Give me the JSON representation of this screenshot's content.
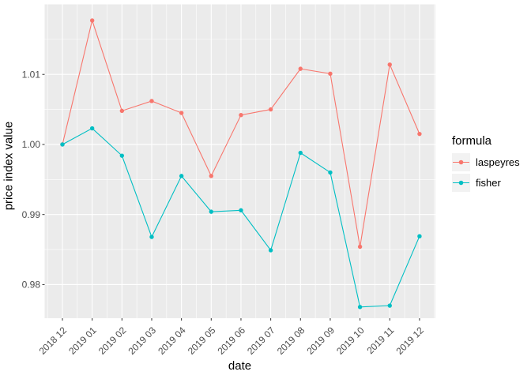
{
  "chart_data": {
    "type": "line",
    "title": "",
    "xlabel": "date",
    "ylabel": "price index value",
    "categories": [
      "2018 12",
      "2019 01",
      "2019 02",
      "2019 03",
      "2019 04",
      "2019 05",
      "2019 06",
      "2019 07",
      "2019 08",
      "2019 09",
      "2019 10",
      "2019 11",
      "2019 12"
    ],
    "series": [
      {
        "name": "laspeyres",
        "color": "#F8766D",
        "values": [
          1.0,
          1.0177,
          1.0048,
          1.0062,
          1.0045,
          0.9955,
          1.0042,
          1.005,
          1.0108,
          1.0101,
          0.9854,
          1.0114,
          1.0015
        ]
      },
      {
        "name": "fisher",
        "color": "#00BFC4",
        "values": [
          1.0,
          1.0023,
          0.9984,
          0.9868,
          0.9955,
          0.9904,
          0.9906,
          0.9849,
          0.9988,
          0.996,
          0.9768,
          0.977,
          0.9869
        ]
      }
    ],
    "y_ticks": [
      {
        "value": 0.98,
        "label": "0.98"
      },
      {
        "value": 0.99,
        "label": "0.99"
      },
      {
        "value": 1.0,
        "label": "1.00"
      },
      {
        "value": 1.01,
        "label": "1.01"
      }
    ],
    "y_minor_gridlines": [
      0.975,
      0.985,
      0.995,
      1.005,
      1.015
    ],
    "ylim": [
      0.9752,
      1.02
    ],
    "grid": true,
    "legend": {
      "title": "formula",
      "position": "right"
    }
  },
  "style": {
    "panel_bg": "#EBEBEB",
    "grid": "#FFFFFF",
    "axis_text": "#4D4D4D",
    "tick": "#333333",
    "key_bg": "#F2F2F2"
  }
}
